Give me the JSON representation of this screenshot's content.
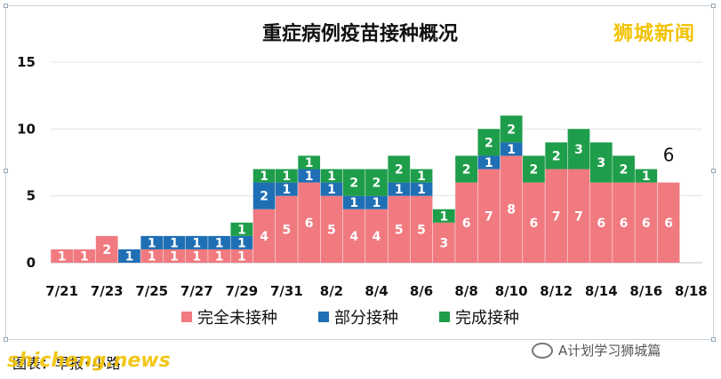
{
  "chart_data": {
    "type": "bar",
    "stacked": true,
    "title": "重症病例疫苗接种概况",
    "ylim": [
      0,
      15
    ],
    "yticks": [
      0,
      5,
      10,
      15
    ],
    "grid": true,
    "categories": [
      "7/21",
      "7/22",
      "7/23",
      "7/24",
      "7/25",
      "7/26",
      "7/27",
      "7/28",
      "7/29",
      "7/30",
      "7/31",
      "8/1",
      "8/2",
      "8/3",
      "8/4",
      "8/5",
      "8/6",
      "8/7",
      "8/8",
      "8/9",
      "8/10",
      "8/11",
      "8/12",
      "8/13",
      "8/14",
      "8/15",
      "8/16",
      "8/17",
      "8/18"
    ],
    "xtick_labels": [
      "7/21",
      "7/23",
      "7/25",
      "7/27",
      "7/29",
      "7/31",
      "8/2",
      "8/4",
      "8/6",
      "8/8",
      "8/10",
      "8/12",
      "8/14",
      "8/16",
      "8/18"
    ],
    "series": [
      {
        "name": "完全未接种",
        "color": "#f07a80",
        "values": [
          1,
          1,
          2,
          0,
          1,
          1,
          1,
          1,
          1,
          4,
          5,
          6,
          5,
          4,
          4,
          5,
          5,
          3,
          6,
          7,
          8,
          6,
          7,
          7,
          6,
          6,
          6,
          6,
          null
        ]
      },
      {
        "name": "部分接种",
        "color": "#1f6fb5",
        "values": [
          0,
          0,
          0,
          1,
          1,
          1,
          1,
          1,
          1,
          2,
          1,
          1,
          1,
          1,
          1,
          1,
          1,
          0,
          0,
          1,
          1,
          0,
          0,
          0,
          0,
          0,
          0,
          0,
          null
        ]
      },
      {
        "name": "完成接种",
        "color": "#1e9e4a",
        "values": [
          0,
          0,
          0,
          0,
          0,
          0,
          0,
          0,
          1,
          1,
          1,
          1,
          1,
          2,
          2,
          2,
          1,
          1,
          2,
          2,
          2,
          2,
          2,
          3,
          3,
          2,
          1,
          0,
          null
        ]
      }
    ],
    "annotations": [
      {
        "category": "8/17",
        "text": "6"
      }
    ],
    "legend": "bottom"
  },
  "brand": "狮城新闻",
  "credit": "图表：早报•小路",
  "watermark": "shicheng.news",
  "wechat_account": "A计划学习狮城篇"
}
